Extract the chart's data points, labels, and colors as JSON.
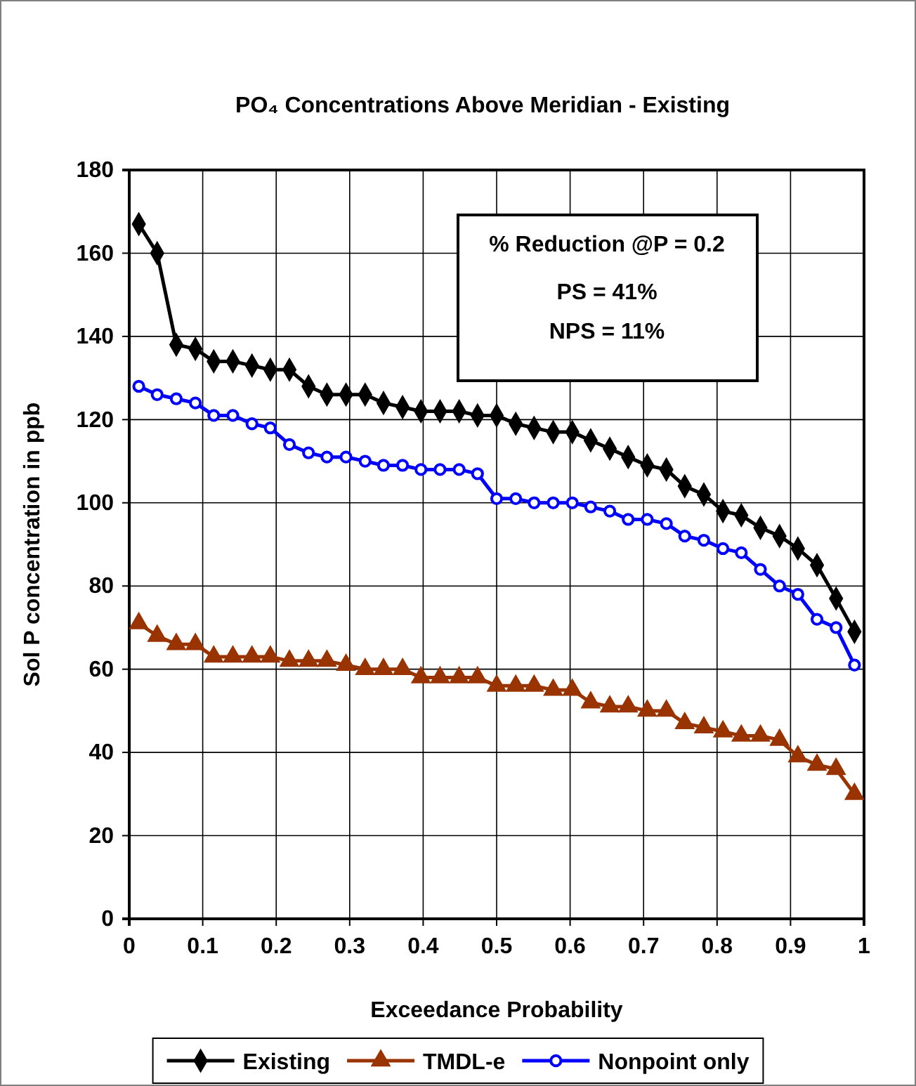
{
  "chart_data": {
    "type": "line",
    "title": "PO₄ Concentrations Above Meridian - Existing",
    "xlabel": "Exceedance Probability",
    "ylabel": "Sol P concentration in ppb",
    "x": [
      0.013,
      0.038,
      0.064,
      0.09,
      0.115,
      0.141,
      0.167,
      0.192,
      0.218,
      0.244,
      0.269,
      0.295,
      0.321,
      0.346,
      0.372,
      0.397,
      0.423,
      0.449,
      0.474,
      0.5,
      0.526,
      0.551,
      0.577,
      0.603,
      0.628,
      0.654,
      0.679,
      0.705,
      0.731,
      0.756,
      0.782,
      0.808,
      0.833,
      0.859,
      0.885,
      0.91,
      0.936,
      0.962,
      0.987
    ],
    "series": [
      {
        "name": "Existing",
        "color": "#000000",
        "marker": "diamond",
        "values": [
          167,
          160,
          138,
          137,
          134,
          134,
          133,
          132,
          132,
          128,
          126,
          126,
          126,
          124,
          123,
          122,
          122,
          122,
          121,
          121,
          119,
          118,
          117,
          117,
          115,
          113,
          111,
          109,
          108,
          104,
          102,
          98,
          97,
          94,
          92,
          89,
          85,
          77,
          69
        ]
      },
      {
        "name": "TMDL-e",
        "color": "#993300",
        "marker": "triangle",
        "values": [
          71,
          68,
          66,
          66,
          63,
          63,
          63,
          63,
          62,
          62,
          62,
          61,
          60,
          60,
          60,
          58,
          58,
          58,
          58,
          56,
          56,
          56,
          55,
          55,
          52,
          51,
          51,
          50,
          50,
          47,
          46,
          45,
          44,
          44,
          43,
          39,
          37,
          36,
          30
        ]
      },
      {
        "name": "Nonpoint only",
        "color": "#0000ff",
        "marker": "circle",
        "values": [
          128,
          126,
          125,
          124,
          121,
          121,
          119,
          118,
          114,
          112,
          111,
          111,
          110,
          109,
          109,
          108,
          108,
          108,
          107,
          101,
          101,
          100,
          100,
          100,
          99,
          98,
          96,
          96,
          95,
          92,
          91,
          89,
          88,
          84,
          80,
          78,
          72,
          70,
          61
        ]
      }
    ],
    "xlim": [
      0,
      1
    ],
    "xticks": [
      0,
      0.1,
      0.2,
      0.3,
      0.4,
      0.5,
      0.6,
      0.7,
      0.8,
      0.9,
      1
    ],
    "ylim": [
      0,
      180
    ],
    "yticks": [
      0,
      20,
      40,
      60,
      80,
      100,
      120,
      140,
      160,
      180
    ],
    "grid": true,
    "legend": "bottom",
    "annotations": [
      "% Reduction @P = 0.2",
      "PS = 41%",
      "NPS = 11%"
    ]
  }
}
